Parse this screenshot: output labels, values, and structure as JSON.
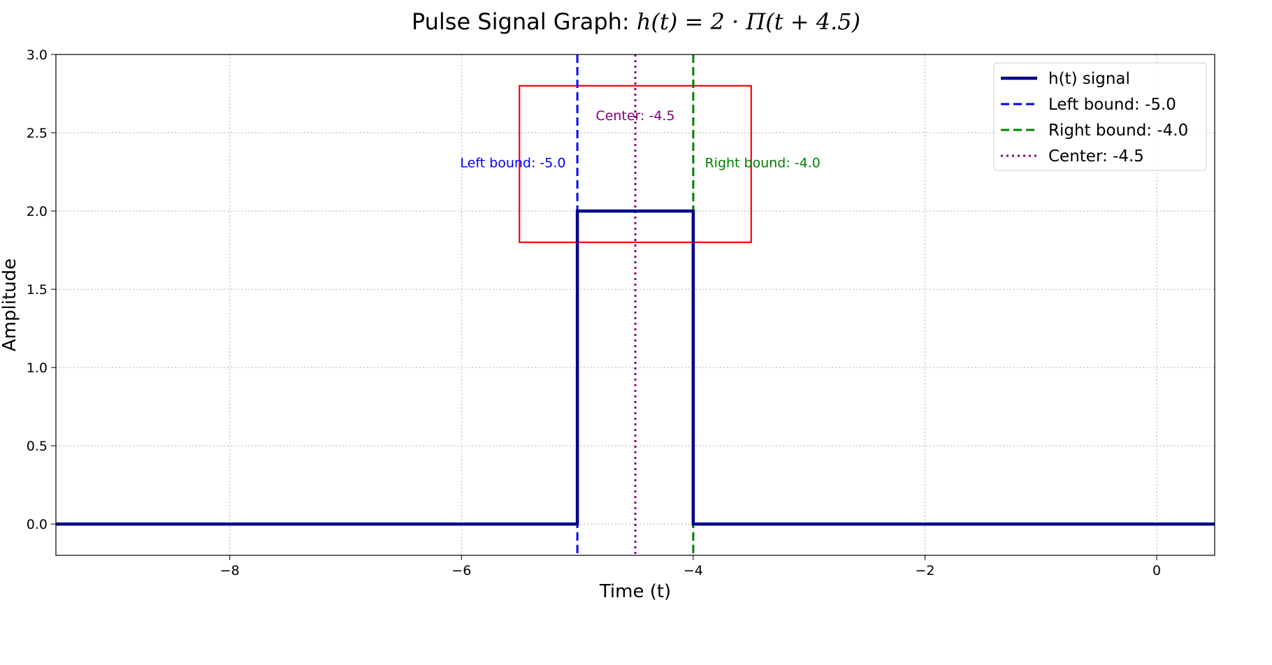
{
  "chart_data": {
    "type": "line",
    "title_prefix": "Pulse Signal Graph: ",
    "title_math": "h(t) = 2 · Π(t + 4.5)",
    "xlabel": "Time (t)",
    "ylabel": "Amplitude",
    "xlim": [
      -9.5,
      0.5
    ],
    "ylim": [
      -0.2,
      3.0
    ],
    "x_ticks": [
      {
        "value": -8,
        "label": "−8"
      },
      {
        "value": -6,
        "label": "−6"
      },
      {
        "value": -4,
        "label": "−4"
      },
      {
        "value": -2,
        "label": "−2"
      },
      {
        "value": 0,
        "label": "0"
      }
    ],
    "y_ticks": [
      {
        "value": 0.0,
        "label": "0.0"
      },
      {
        "value": 0.5,
        "label": "0.5"
      },
      {
        "value": 1.0,
        "label": "1.0"
      },
      {
        "value": 1.5,
        "label": "1.5"
      },
      {
        "value": 2.0,
        "label": "2.0"
      },
      {
        "value": 2.5,
        "label": "2.5"
      },
      {
        "value": 3.0,
        "label": "3.0"
      }
    ],
    "grid": true,
    "series": [
      {
        "name": "h(t) signal",
        "color": "#00008b",
        "style": "solid",
        "x": [
          -9.5,
          -5.0,
          -5.0,
          -4.0,
          -4.0,
          0.5
        ],
        "y": [
          0,
          0,
          2,
          2,
          0,
          0
        ]
      }
    ],
    "vlines": [
      {
        "name": "Left bound: -5.0",
        "x": -5.0,
        "color": "#0000ff",
        "style": "dashed"
      },
      {
        "name": "Right bound: -4.0",
        "x": -4.0,
        "color": "#008000",
        "style": "dashed"
      },
      {
        "name": "Center: -4.5",
        "x": -4.5,
        "color": "#800080",
        "style": "dotted"
      }
    ],
    "annotations": [
      {
        "text": "Left bound: -5.0",
        "x": -5.1,
        "y": 2.28,
        "anchor": "end",
        "color": "#0000ff"
      },
      {
        "text": "Center: -4.5",
        "x": -4.5,
        "y": 2.58,
        "anchor": "middle",
        "color": "#800080"
      },
      {
        "text": "Right bound: -4.0",
        "x": -3.9,
        "y": 2.28,
        "anchor": "start",
        "color": "#008000"
      }
    ],
    "highlight_box": {
      "x0": -5.5,
      "x1": -3.5,
      "y0": 1.8,
      "y1": 2.8,
      "color": "#ff0000"
    },
    "legend": {
      "position": "top-right",
      "entries": [
        {
          "label": "h(t) signal",
          "color": "#00008b",
          "style": "solid"
        },
        {
          "label": "Left bound: -5.0",
          "color": "#0000ff",
          "style": "dashed"
        },
        {
          "label": "Right bound: -4.0",
          "color": "#008000",
          "style": "dashed"
        },
        {
          "label": "Center: -4.5",
          "color": "#800080",
          "style": "dotted"
        }
      ]
    }
  }
}
